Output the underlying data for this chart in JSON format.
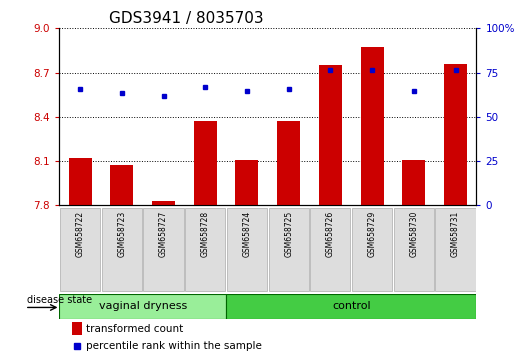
{
  "title": "GDS3941 / 8035703",
  "samples": [
    "GSM658722",
    "GSM658723",
    "GSM658727",
    "GSM658728",
    "GSM658724",
    "GSM658725",
    "GSM658726",
    "GSM658729",
    "GSM658730",
    "GSM658731"
  ],
  "bar_values": [
    8.12,
    8.07,
    7.83,
    8.37,
    8.11,
    8.37,
    8.75,
    8.87,
    8.11,
    8.76
  ],
  "dot_values_pct": [
    65.5,
    63.5,
    61.8,
    66.8,
    64.8,
    65.8,
    76.2,
    76.2,
    64.5,
    76.2
  ],
  "bar_bottom": 7.8,
  "ylim_left": [
    7.8,
    9.0
  ],
  "ylim_right": [
    0,
    100
  ],
  "yticks_left": [
    7.8,
    8.1,
    8.4,
    8.7,
    9.0
  ],
  "yticks_right": [
    0,
    25,
    50,
    75,
    100
  ],
  "bar_color": "#cc0000",
  "dot_color": "#0000cc",
  "group1_label": "vaginal dryness",
  "group2_label": "control",
  "group1_color": "#99ee99",
  "group2_color": "#44cc44",
  "group1_count": 4,
  "group2_count": 6,
  "legend_bar_label": "transformed count",
  "legend_dot_label": "percentile rank within the sample",
  "disease_state_label": "disease state",
  "title_fontsize": 11
}
